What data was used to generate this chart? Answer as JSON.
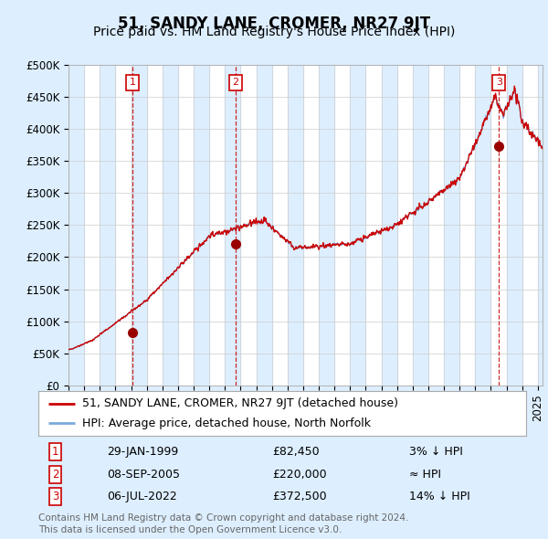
{
  "title": "51, SANDY LANE, CROMER, NR27 9JT",
  "subtitle": "Price paid vs. HM Land Registry's House Price Index (HPI)",
  "ylim": [
    0,
    500000
  ],
  "yticks": [
    0,
    50000,
    100000,
    150000,
    200000,
    250000,
    300000,
    350000,
    400000,
    450000,
    500000
  ],
  "ytick_labels": [
    "£0",
    "£50K",
    "£100K",
    "£150K",
    "£200K",
    "£250K",
    "£300K",
    "£350K",
    "£400K",
    "£450K",
    "£500K"
  ],
  "xlim_start": 1995.0,
  "xlim_end": 2025.3,
  "sale_dates": [
    1999.08,
    2005.69,
    2022.51
  ],
  "sale_prices": [
    82450,
    220000,
    372500
  ],
  "sale_labels": [
    "1",
    "2",
    "3"
  ],
  "sale_info": [
    {
      "num": "1",
      "date": "29-JAN-1999",
      "price": "£82,450",
      "vs_hpi": "3% ↓ HPI"
    },
    {
      "num": "2",
      "date": "08-SEP-2005",
      "price": "£220,000",
      "vs_hpi": "≈ HPI"
    },
    {
      "num": "3",
      "date": "06-JUL-2022",
      "price": "£372,500",
      "vs_hpi": "14% ↓ HPI"
    }
  ],
  "legend_line1": "51, SANDY LANE, CROMER, NR27 9JT (detached house)",
  "legend_line2": "HPI: Average price, detached house, North Norfolk",
  "footer1": "Contains HM Land Registry data © Crown copyright and database right 2024.",
  "footer2": "This data is licensed under the Open Government Licence v3.0.",
  "line_color_red": "#cc0000",
  "line_color_blue": "#7aaadd",
  "bg_color": "#ddeeff",
  "plot_bg": "#ffffff",
  "band_color": "#ddeeff",
  "marker_color": "#990000",
  "vline_color": "#cc0000",
  "box_color": "#cc0000",
  "title_fontsize": 12,
  "subtitle_fontsize": 10,
  "tick_fontsize": 8.5,
  "legend_fontsize": 9,
  "table_fontsize": 9,
  "footer_fontsize": 7.5
}
